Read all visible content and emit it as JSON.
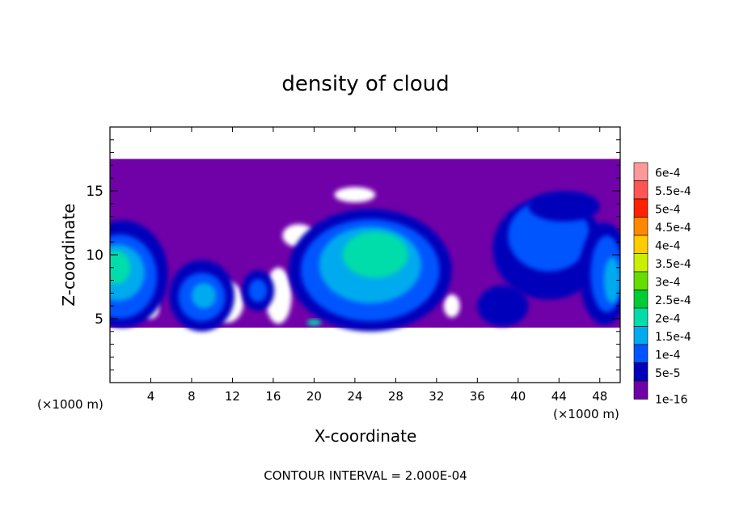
{
  "chart_data": {
    "type": "heatmap",
    "title": "density of cloud",
    "xlabel": "X-coordinate",
    "ylabel": "Z-coordinate",
    "x_unit": "(×1000 m)",
    "z_unit": "(×1000 m)",
    "xlim": [
      0,
      50
    ],
    "ylim": [
      0,
      20
    ],
    "x_ticks": [
      4,
      8,
      12,
      16,
      20,
      24,
      28,
      32,
      36,
      40,
      44,
      48
    ],
    "y_ticks": [
      5,
      10,
      15
    ],
    "footer": "CONTOUR INTERVAL = 2.000E-04",
    "colorbar": {
      "labels": [
        "6e-4",
        "5.5e-4",
        "5e-4",
        "4.5e-4",
        "4e-4",
        "3.5e-4",
        "3e-4",
        "2.5e-4",
        "2e-4",
        "1.5e-4",
        "1e-4",
        "5e-5",
        "1e-16"
      ],
      "colors": [
        "#ff9999",
        "#ff5555",
        "#ff2200",
        "#ff8800",
        "#ffcc00",
        "#ccee00",
        "#66dd00",
        "#00cc33",
        "#00ddaa",
        "#00aaee",
        "#0055ff",
        "#0000bb",
        "#7000a8"
      ]
    },
    "cloud_layer": {
      "base_z": 4.3,
      "top_z": 17.5
    }
  }
}
